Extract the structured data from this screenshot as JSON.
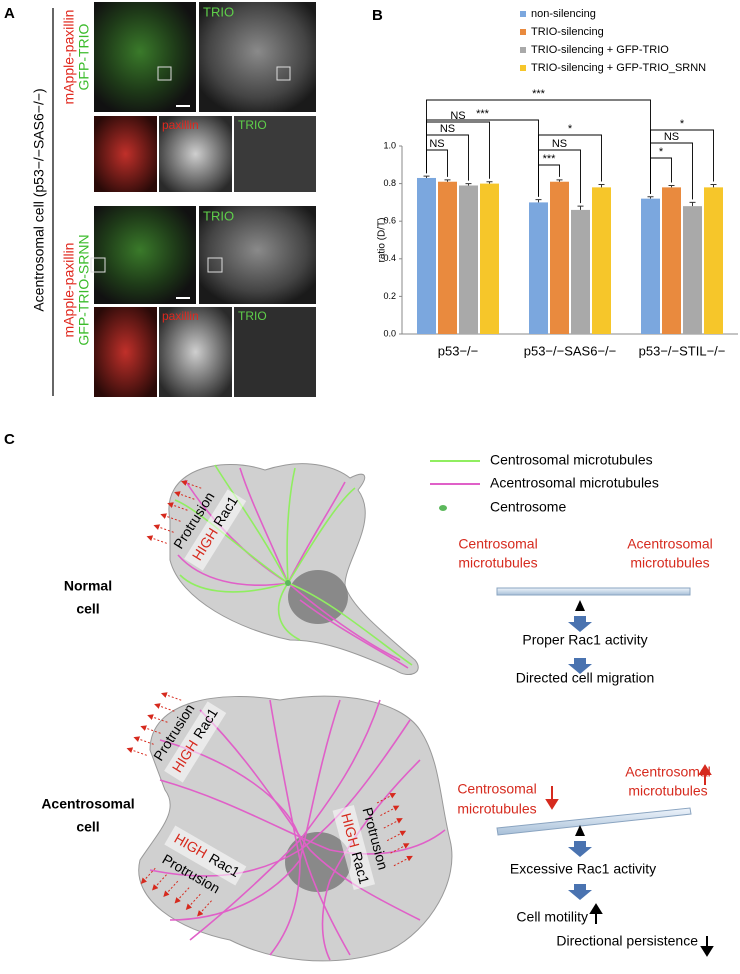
{
  "panel_a": {
    "label": "A",
    "side_label": "Acentrosomal cell (p53−/−SAS6−/−)",
    "rows": [
      {
        "label_red": "mApple-paxillin",
        "label_green": "GFP-TRIO",
        "tile_label": "TRIO",
        "zoom_labels": [
          "paxillin",
          "TRIO"
        ]
      },
      {
        "label_red": "mApple-paxillin",
        "label_green": "GFP-TRIO-SRNN",
        "tile_label": "TRIO",
        "zoom_labels": [
          "paxillin",
          "TRIO"
        ]
      }
    ]
  },
  "panel_b": {
    "label": "B"
  },
  "chart_data": {
    "type": "bar",
    "y_label": "ratio (D/T)",
    "categories": [
      "p53−/−",
      "p53−/−SAS6−/−",
      "p53−/−STIL−/−"
    ],
    "series": [
      {
        "name": "non-silencing",
        "color": "#7ba7de",
        "values": [
          0.83,
          0.7,
          0.72
        ],
        "errors": [
          0.01,
          0.015,
          0.01
        ]
      },
      {
        "name": "TRIO-silencing",
        "color": "#e98a3e",
        "values": [
          0.81,
          0.81,
          0.78
        ],
        "errors": [
          0.01,
          0.01,
          0.01
        ]
      },
      {
        "name": "TRIO-silencing + GFP-TRIO",
        "color": "#a9a9a9",
        "values": [
          0.79,
          0.66,
          0.68
        ],
        "errors": [
          0.01,
          0.02,
          0.02
        ]
      },
      {
        "name": "TRIO-silencing + GFP-TRIO_SRNN",
        "color": "#f6c62a",
        "values": [
          0.8,
          0.78,
          0.78
        ],
        "errors": [
          0.01,
          0.015,
          0.015
        ]
      }
    ],
    "ylim": [
      0,
      1.0
    ],
    "yticks": [
      {
        "value": 0,
        "label": "0.0"
      },
      0.2,
      0.4,
      0.6,
      0.8,
      {
        "value": 1.0,
        "label": "1.0"
      }
    ],
    "grid": false,
    "annotations": [
      {
        "label": "***"
      },
      {
        "label": "***"
      },
      {
        "label": "NS"
      },
      {
        "label": "NS"
      },
      {
        "label": "NS"
      },
      {
        "label": "***"
      },
      {
        "label": "NS"
      },
      {
        "label": "*"
      },
      {
        "label": "*"
      },
      {
        "label": "NS"
      },
      {
        "label": "*"
      }
    ]
  },
  "panel_c": {
    "label": "C",
    "legend": [
      "Centrosomal microtubules",
      "Acentrosomal microtubules",
      "Centrosome"
    ],
    "normal": {
      "name": [
        "Normal",
        "cell"
      ],
      "protrusion": "Protrusion",
      "high": "HIGH",
      "rac": "Rac1",
      "left": [
        "Centrosomal",
        "microtubules"
      ],
      "right": [
        "Acentrosomal",
        "microtubules"
      ],
      "steps": [
        "Proper Rac1 activity",
        "Directed cell migration"
      ]
    },
    "acentrosomal": {
      "name": [
        "Acentrosomal",
        "cell"
      ],
      "protrusions": [
        {
          "protrusion": "Protrusion",
          "high": "HIGH",
          "rac": "Rac1"
        },
        {
          "protrusion": "Protrusion",
          "high": "HIGH",
          "rac": "Rac1"
        },
        {
          "protrusion": "Protrusion",
          "high": "HIGH",
          "rac": "Rac1"
        }
      ],
      "left": [
        "Centrosomal",
        "microtubules"
      ],
      "right": [
        "Acentrosomal",
        "microtubules"
      ],
      "steps": [
        "Excessive Rac1 activity",
        "Cell motility",
        "Directional persistence"
      ]
    }
  }
}
